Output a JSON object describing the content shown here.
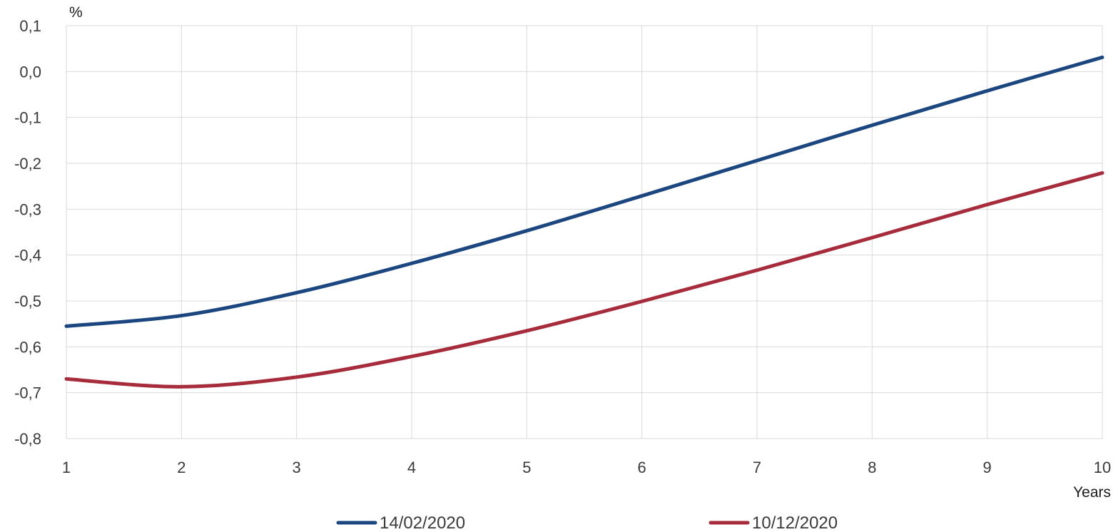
{
  "chart_data": {
    "type": "line",
    "title": "",
    "ylabel": "%",
    "xlabel": "Years",
    "x": [
      1,
      2,
      3,
      4,
      5,
      6,
      7,
      8,
      9,
      10
    ],
    "xticks": [
      "1",
      "2",
      "3",
      "4",
      "5",
      "6",
      "7",
      "8",
      "9",
      "10"
    ],
    "yticks": [
      "0,1",
      "0,0",
      "-0,1",
      "-0,2",
      "-0,3",
      "-0,4",
      "-0,5",
      "-0,6",
      "-0,7",
      "-0,8"
    ],
    "xlim": [
      1,
      10
    ],
    "ylim": [
      -0.8,
      0.1
    ],
    "grid": true,
    "legend_position": "bottom",
    "series": [
      {
        "name": "14/02/2020",
        "color": "#1b4680",
        "values": [
          -0.555,
          -0.532,
          -0.482,
          -0.418,
          -0.347,
          -0.271,
          -0.194,
          -0.117,
          -0.042,
          0.031
        ]
      },
      {
        "name": "10/12/2020",
        "color": "#a62b3b",
        "values": [
          -0.67,
          -0.687,
          -0.666,
          -0.621,
          -0.565,
          -0.501,
          -0.433,
          -0.362,
          -0.29,
          -0.221
        ]
      }
    ]
  }
}
